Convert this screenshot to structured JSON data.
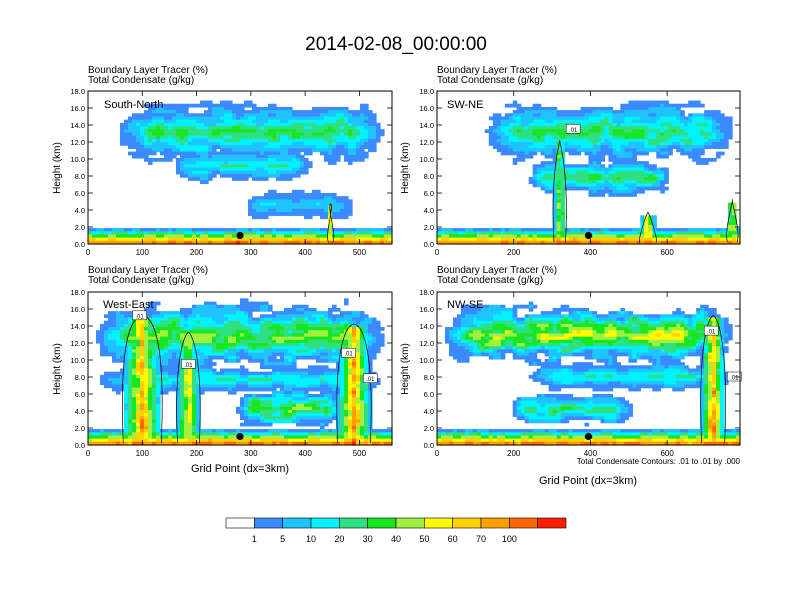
{
  "figure_title": "2014-02-08_00:00:00",
  "xlabel": "Grid Point (dx=3km)",
  "footnote": "Total Condensate Contours: .01 to .01 by .000",
  "colors": {
    "text": "#000000",
    "axis": "#000000",
    "contour": "#000000",
    "marker": "#000000",
    "levels": [
      "#ffffff",
      "#3a8bff",
      "#1ec3ff",
      "#00f2ff",
      "#2ee082",
      "#18e620",
      "#a0f040",
      "#fffa00",
      "#ffd000",
      "#ffa000",
      "#ff6400",
      "#ff1e00"
    ]
  },
  "colorbar": {
    "labels": [
      "1",
      "5",
      "10",
      "20",
      "30",
      "40",
      "50",
      "60",
      "70",
      "100"
    ]
  },
  "chart_data": [
    {
      "type": "heatmap",
      "panel": "South-North",
      "title_line1": "Boundary Layer Tracer   (%)",
      "title_line2": "Total Condensate   (g/kg)",
      "ylabel": "Height (km)",
      "xlabel": "",
      "xlim": [
        0,
        560
      ],
      "ylim": [
        0,
        18
      ],
      "xticks": [
        0,
        100,
        200,
        300,
        400,
        500
      ],
      "xtick_labels": [
        "0",
        "100",
        "200",
        "300",
        "400",
        "500"
      ],
      "yticks": [
        0,
        2,
        4,
        6,
        8,
        10,
        12,
        14,
        16,
        18
      ],
      "ytick_labels": [
        "0.0",
        "2.0",
        "4.0",
        "6.0",
        "8.0",
        "10.0",
        "12.0",
        "14.0",
        "16.0",
        "18.0"
      ],
      "marker": {
        "x": 280,
        "y": 1.0
      },
      "contour_labels": [],
      "anvils": [
        {
          "x0": 40,
          "x1": 560,
          "ymid": 13.2,
          "thick": 3.0,
          "peak": 4
        },
        {
          "x0": 150,
          "x1": 420,
          "ymid": 9.2,
          "thick": 1.6,
          "peak": 3
        },
        {
          "x0": 280,
          "x1": 500,
          "ymid": 4.5,
          "thick": 1.4,
          "peak": 2
        }
      ],
      "towers": [
        {
          "x": 447,
          "w": 8,
          "top": 4.5,
          "peak": 8
        }
      ]
    },
    {
      "type": "heatmap",
      "panel": "SW-NE",
      "title_line1": "Boundary Layer Tracer   (%)",
      "title_line2": "Total Condensate   (g/kg)",
      "ylabel": "Height (km)",
      "xlabel": "",
      "xlim": [
        0,
        790
      ],
      "ylim": [
        0,
        18
      ],
      "xticks": [
        0,
        200,
        400,
        600
      ],
      "xtick_labels": [
        "0",
        "200",
        "400",
        "600"
      ],
      "yticks": [
        0,
        2,
        4,
        6,
        8,
        10,
        12,
        14,
        16,
        18
      ],
      "ytick_labels": [
        "0.0",
        "2.0",
        "4.0",
        "6.0",
        "8.0",
        "10.0",
        "12.0",
        "14.0",
        "16.0",
        "18.0"
      ],
      "marker": {
        "x": 395,
        "y": 1.0
      },
      "contour_labels": [
        {
          "text": ".01",
          "x": 355,
          "y": 13.5
        }
      ],
      "anvils": [
        {
          "x0": 110,
          "x1": 790,
          "ymid": 13.2,
          "thick": 3.0,
          "peak": 4
        },
        {
          "x0": 230,
          "x1": 620,
          "ymid": 7.8,
          "thick": 1.8,
          "peak": 4
        }
      ],
      "towers": [
        {
          "x": 320,
          "w": 30,
          "top": 12.0,
          "peak": 6
        },
        {
          "x": 550,
          "w": 40,
          "top": 3.5,
          "peak": 8
        },
        {
          "x": 770,
          "w": 25,
          "top": 5.0,
          "peak": 8
        }
      ]
    },
    {
      "type": "heatmap",
      "panel": "West-East",
      "title_line1": "Boundary Layer Tracer   (%)",
      "title_line2": "Total Condensate   (g/kg)",
      "ylabel": "Height (km)",
      "xlabel": "",
      "xlim": [
        0,
        560
      ],
      "ylim": [
        0,
        18
      ],
      "xticks": [
        0,
        100,
        200,
        300,
        400,
        500
      ],
      "xtick_labels": [
        "0",
        "100",
        "200",
        "300",
        "400",
        "500"
      ],
      "yticks": [
        0,
        2,
        4,
        6,
        8,
        10,
        12,
        14,
        16,
        18
      ],
      "ytick_labels": [
        "0.0",
        "2.0",
        "4.0",
        "6.0",
        "8.0",
        "10.0",
        "12.0",
        "14.0",
        "16.0",
        "18.0"
      ],
      "marker": {
        "x": 280,
        "y": 1.0
      },
      "contour_labels": [
        {
          "text": ".01",
          "x": 95,
          "y": 15.2
        },
        {
          "text": ".01",
          "x": 185,
          "y": 9.5
        },
        {
          "text": ".01",
          "x": 480,
          "y": 10.8
        },
        {
          "text": ".01",
          "x": 520,
          "y": 7.8
        }
      ],
      "anvils": [
        {
          "x0": 0,
          "x1": 560,
          "ymid": 12.8,
          "thick": 3.4,
          "peak": 5
        },
        {
          "x0": 0,
          "x1": 560,
          "ymid": 7.6,
          "thick": 1.4,
          "peak": 3
        },
        {
          "x0": 270,
          "x1": 470,
          "ymid": 4.3,
          "thick": 2.0,
          "peak": 5
        }
      ],
      "towers": [
        {
          "x": 100,
          "w": 70,
          "top": 15.0,
          "peak": 8
        },
        {
          "x": 185,
          "w": 40,
          "top": 13.0,
          "peak": 7
        },
        {
          "x": 490,
          "w": 60,
          "top": 14.0,
          "peak": 9
        }
      ]
    },
    {
      "type": "heatmap",
      "panel": "NW-SE",
      "title_line1": "Boundary Layer Tracer   (%)",
      "title_line2": "Total Condensate   (g/kg)",
      "ylabel": "Height (km)",
      "xlabel": "",
      "xlim": [
        0,
        790
      ],
      "ylim": [
        0,
        18
      ],
      "xticks": [
        0,
        200,
        400,
        600
      ],
      "xtick_labels": [
        "0",
        "200",
        "400",
        "600"
      ],
      "yticks": [
        0,
        2,
        4,
        6,
        8,
        10,
        12,
        14,
        16,
        18
      ],
      "ytick_labels": [
        "0.0",
        "2.0",
        "4.0",
        "6.0",
        "8.0",
        "10.0",
        "12.0",
        "14.0",
        "16.0",
        "18.0"
      ],
      "marker": {
        "x": 395,
        "y": 1.0
      },
      "contour_labels": [
        {
          "text": ".01",
          "x": 715,
          "y": 13.4
        },
        {
          "text": ".01",
          "x": 775,
          "y": 8.0
        }
      ],
      "anvils": [
        {
          "x0": 0,
          "x1": 790,
          "ymid": 13.0,
          "thick": 3.0,
          "peak": 6
        },
        {
          "x0": 220,
          "x1": 790,
          "ymid": 8.0,
          "thick": 1.4,
          "peak": 3
        },
        {
          "x0": 180,
          "x1": 520,
          "ymid": 4.2,
          "thick": 1.6,
          "peak": 4
        }
      ],
      "towers": [
        {
          "x": 720,
          "w": 60,
          "top": 15.0,
          "peak": 9
        }
      ]
    }
  ]
}
